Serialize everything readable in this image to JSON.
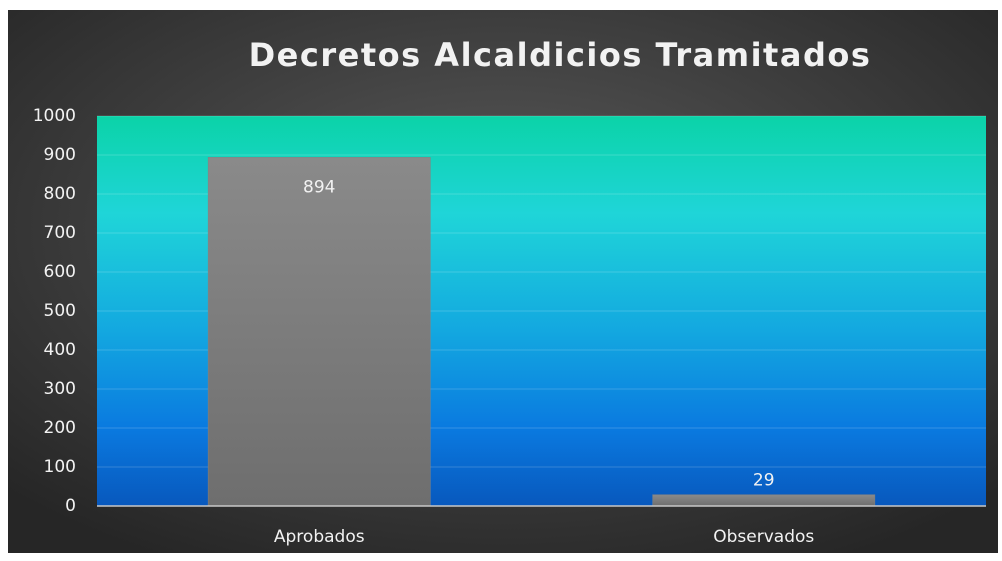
{
  "chart_data": {
    "type": "bar",
    "title": "Decretos Alcaldicios Tramitados",
    "categories": [
      "Aprobados",
      "Observados"
    ],
    "values": [
      894,
      29
    ],
    "color": "#828282",
    "ylim": [
      0,
      1000
    ],
    "yticks": [
      0,
      100,
      200,
      300,
      400,
      500,
      600,
      700,
      800,
      900,
      1000
    ],
    "grid": true
  }
}
